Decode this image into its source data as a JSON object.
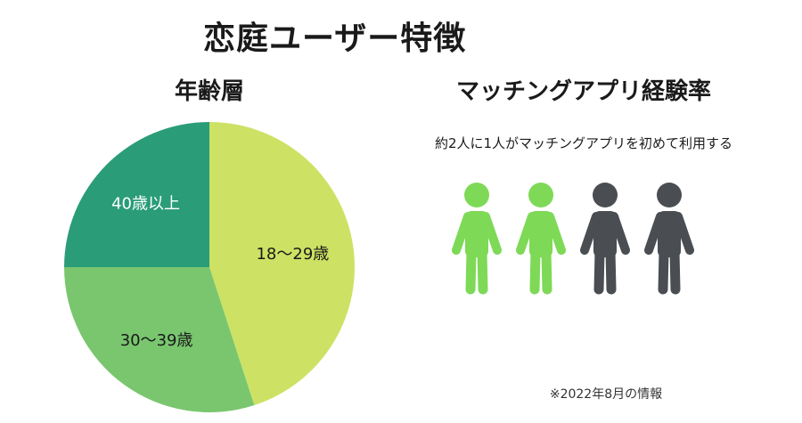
{
  "title": "恋庭ユーザー特徴",
  "chart_data": [
    {
      "type": "pie",
      "title": "年齢層",
      "categories": [
        "18〜29歳",
        "30〜39歳",
        "40歳以上"
      ],
      "values": [
        45,
        30,
        25
      ],
      "colors": [
        "#cde264",
        "#79c66f",
        "#2a9c78"
      ]
    }
  ],
  "experience": {
    "title": "マッチングアプリ経験率",
    "subtitle": "約2人に1人がマッチングアプリを初めて利用する",
    "people_total": 4,
    "people_first_time": 2,
    "colors": {
      "first_time": "#7ed957",
      "other": "#4a4d52"
    }
  },
  "note": "※2022年8月の情報"
}
